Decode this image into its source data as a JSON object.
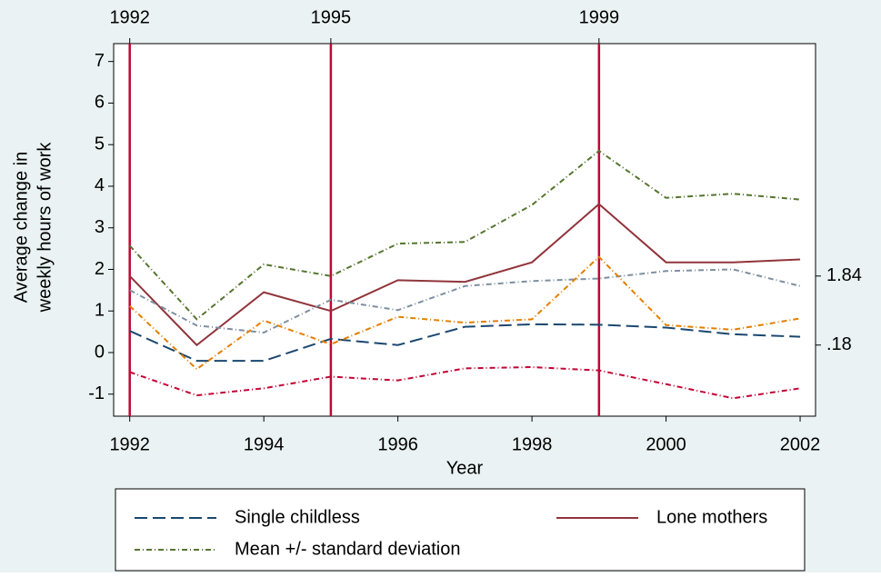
{
  "chart_data": {
    "type": "line",
    "x_label": "Year",
    "y_label": [
      "Average change in",
      "weekly hours of work"
    ],
    "x": [
      1992,
      1993,
      1994,
      1995,
      1996,
      1997,
      1998,
      1999,
      2000,
      2001,
      2002
    ],
    "series": [
      {
        "name": "Single childless",
        "color": "#1a476f",
        "dash": "14 6",
        "values": [
          0.52,
          -0.2,
          -0.2,
          0.33,
          0.18,
          0.62,
          0.68,
          0.67,
          0.6,
          0.44,
          0.38
        ]
      },
      {
        "name": "Lone mothers",
        "color": "#90353b",
        "dash": "none",
        "values": [
          1.84,
          0.18,
          1.45,
          1.0,
          1.74,
          1.7,
          2.17,
          3.57,
          2.17,
          2.17,
          2.24
        ]
      },
      {
        "name": "Mean +/- standard deviation",
        "color": "#55752f",
        "dash": "6 3 1 3",
        "values": [
          2.57,
          0.8,
          2.12,
          1.84,
          2.62,
          2.66,
          3.55,
          4.85,
          3.72,
          3.82,
          3.68
        ]
      },
      {
        "color": "#7e8fa0",
        "dash": "6 3 1 3",
        "values": [
          1.5,
          0.65,
          0.48,
          1.27,
          1.02,
          1.6,
          1.72,
          1.78,
          1.96,
          2.0,
          1.6
        ]
      },
      {
        "color": "#e37e00",
        "dash": "6 3 1 3",
        "values": [
          1.12,
          -0.4,
          0.77,
          0.2,
          0.86,
          0.72,
          0.8,
          2.3,
          0.66,
          0.55,
          0.82
        ]
      },
      {
        "color": "#c10534",
        "dash": "6 3 1 3",
        "values": [
          -0.47,
          -1.03,
          -0.86,
          -0.58,
          -0.67,
          -0.38,
          -0.35,
          -0.43,
          -0.76,
          -1.1,
          -0.86
        ]
      }
    ],
    "xlim": [
      1991.76,
      2002.23
    ],
    "xticks": [
      1992,
      1994,
      1996,
      1998,
      2000,
      2002
    ],
    "ylim": [
      -1.53,
      7.43
    ],
    "yticks": [
      -1,
      0,
      1,
      2,
      3,
      4,
      5,
      6,
      7
    ],
    "y2lim": [
      -1.53,
      7.43
    ],
    "y2ticks": [
      1.84,
      {
        "value": 0.18,
        "label": ".18"
      }
    ],
    "vlines": [
      1992,
      1995,
      1999
    ],
    "vline_color": "#c10534"
  }
}
